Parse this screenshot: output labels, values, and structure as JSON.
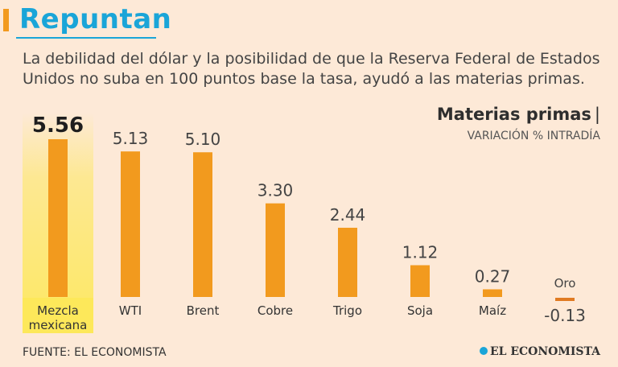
{
  "header": {
    "title": "Repuntan",
    "subtitle": "La debilidad del dólar y la posibilidad de que la Reserva Federal de Estados Unidos no suba en 100 puntos base la tasa, ayudó a las materias primas."
  },
  "chart_header": {
    "title": "Materias primas",
    "title_separator": "|",
    "subtitle": "VARIACIÓN % INTRADÍA"
  },
  "footer": {
    "source": "FUENTE: EL ECONOMISTA",
    "brand": "EL ECONOMISTA"
  },
  "colors": {
    "bar": "#f29a1e",
    "bar_negative": "#e07a22",
    "highlight": "#fde85a",
    "title": "#1aa5d8"
  },
  "chart_data": {
    "type": "bar",
    "title": "Materias primas",
    "ylabel": "VARIACIÓN % INTRADÍA",
    "categories": [
      "Mezcla mexicana",
      "WTI",
      "Brent",
      "Cobre",
      "Trigo",
      "Soja",
      "Maíz",
      "Oro"
    ],
    "category_lines": [
      [
        "Mezcla",
        "mexicana"
      ],
      [
        "WTI"
      ],
      [
        "Brent"
      ],
      [
        "Cobre"
      ],
      [
        "Trigo"
      ],
      [
        "Soja"
      ],
      [
        "Maíz"
      ],
      [
        "Oro"
      ]
    ],
    "values": [
      5.56,
      5.13,
      5.1,
      3.3,
      2.44,
      1.12,
      0.27,
      -0.13
    ],
    "value_labels": [
      "5.56",
      "5.13",
      "5.10",
      "3.30",
      "2.44",
      "1.12",
      "0.27",
      "-0.13"
    ],
    "highlight_index": 0,
    "ylim": [
      -0.2,
      5.8
    ]
  }
}
